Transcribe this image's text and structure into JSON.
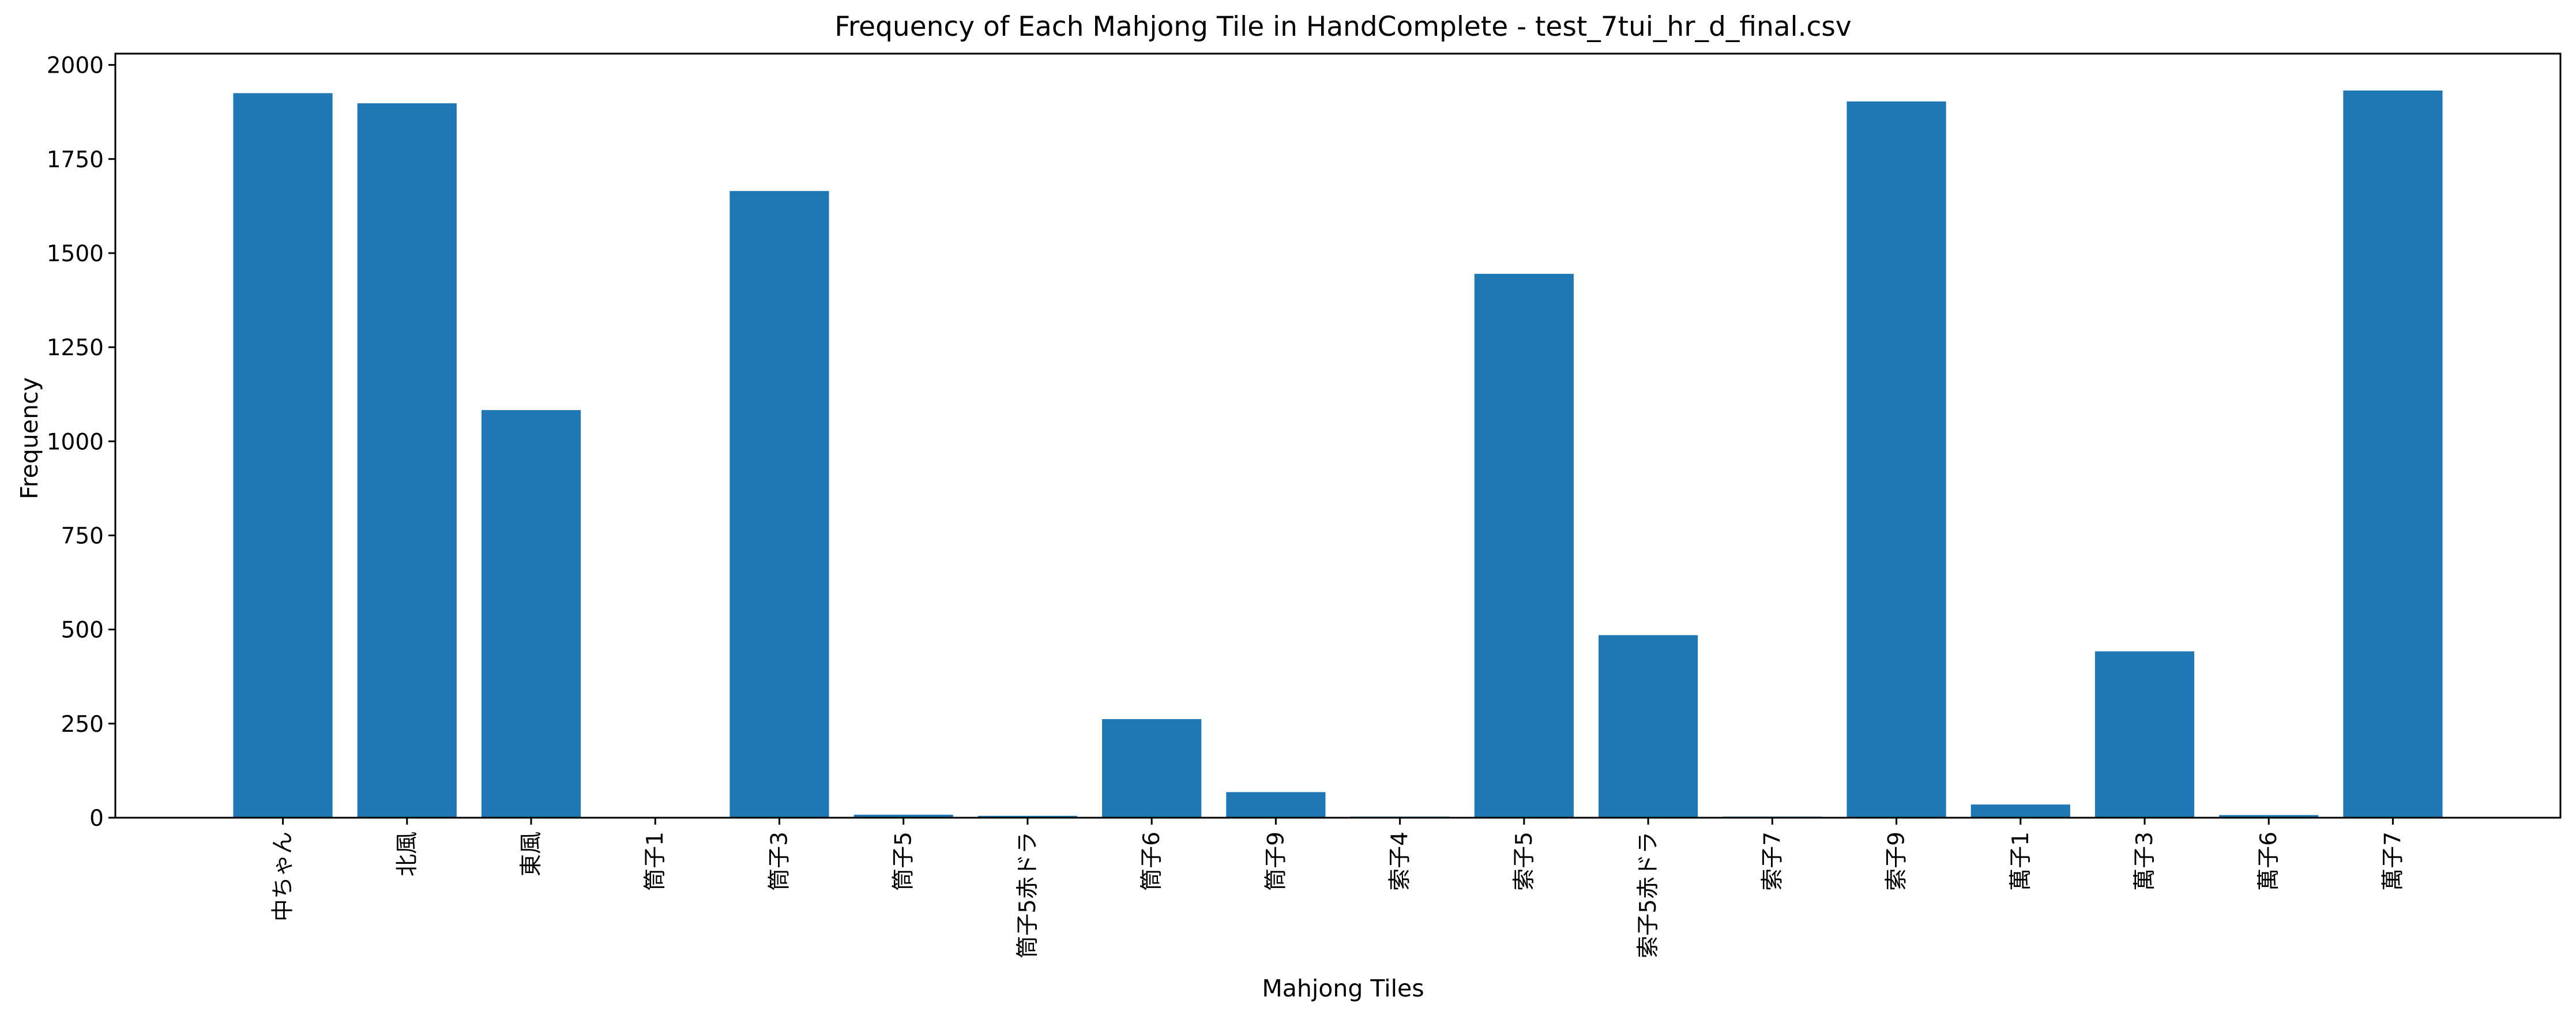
{
  "chart_data": {
    "type": "bar",
    "title": "Frequency of Each Mahjong Tile in HandComplete - test_7tui_hr_d_final.csv",
    "xlabel": "Mahjong Tiles",
    "ylabel": "Frequency",
    "categories": [
      "中ちゃん",
      "北風",
      "東風",
      "筒子1",
      "筒子3",
      "筒子5",
      "筒子5赤ドラ",
      "筒子6",
      "筒子9",
      "索子4",
      "索子5",
      "索子5赤ドラ",
      "索子7",
      "索子9",
      "萬子1",
      "萬子3",
      "萬子6",
      "萬子7"
    ],
    "values": [
      1925,
      1898,
      1083,
      1,
      1665,
      8,
      5,
      262,
      68,
      3,
      1445,
      485,
      3,
      1903,
      35,
      442,
      7,
      1932
    ],
    "ylim": [
      0,
      2030
    ],
    "yticks": [
      0,
      250,
      500,
      750,
      1000,
      1250,
      1500,
      1750,
      2000
    ],
    "grid": false,
    "bar_color": "#1f77b4",
    "tick_label_rotation": "vertical"
  }
}
